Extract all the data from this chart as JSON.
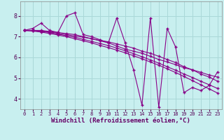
{
  "xlabel": "Windchill (Refroidissement éolien,°C)",
  "bg_color": "#c8efef",
  "grid_color": "#aad8d8",
  "line_color": "#880088",
  "xlim": [
    -0.5,
    23.5
  ],
  "ylim": [
    3.5,
    8.7
  ],
  "xticks": [
    0,
    1,
    2,
    3,
    4,
    5,
    6,
    7,
    8,
    9,
    10,
    11,
    12,
    13,
    14,
    15,
    16,
    17,
    18,
    19,
    20,
    21,
    22,
    23
  ],
  "yticks": [
    4,
    5,
    6,
    7,
    8
  ],
  "series": [
    [
      7.3,
      7.4,
      7.65,
      7.3,
      7.2,
      8.0,
      8.15,
      7.1,
      7.0,
      6.85,
      6.7,
      7.9,
      6.7,
      5.4,
      3.7,
      7.9,
      3.6,
      7.4,
      6.5,
      4.3,
      4.55,
      4.4,
      4.65,
      5.3
    ],
    [
      7.3,
      7.3,
      7.3,
      7.25,
      7.2,
      7.15,
      7.1,
      7.0,
      6.9,
      6.8,
      6.7,
      6.55,
      6.4,
      6.3,
      6.2,
      6.05,
      5.9,
      5.78,
      5.65,
      5.5,
      5.4,
      5.28,
      5.15,
      5.05
    ],
    [
      7.3,
      7.3,
      7.28,
      7.22,
      7.16,
      7.1,
      7.03,
      6.97,
      6.9,
      6.82,
      6.75,
      6.65,
      6.55,
      6.45,
      6.3,
      6.2,
      6.05,
      5.9,
      5.75,
      5.55,
      5.4,
      5.2,
      5.05,
      4.85
    ],
    [
      7.3,
      7.28,
      7.25,
      7.2,
      7.12,
      7.05,
      6.97,
      6.87,
      6.77,
      6.67,
      6.57,
      6.45,
      6.32,
      6.18,
      6.03,
      5.88,
      5.72,
      5.55,
      5.38,
      5.2,
      5.03,
      4.85,
      4.68,
      4.5
    ],
    [
      7.3,
      7.27,
      7.22,
      7.15,
      7.08,
      7.0,
      6.9,
      6.8,
      6.7,
      6.58,
      6.47,
      6.35,
      6.22,
      6.08,
      5.93,
      5.78,
      5.62,
      5.45,
      5.27,
      5.08,
      4.88,
      4.68,
      4.48,
      4.28
    ]
  ]
}
